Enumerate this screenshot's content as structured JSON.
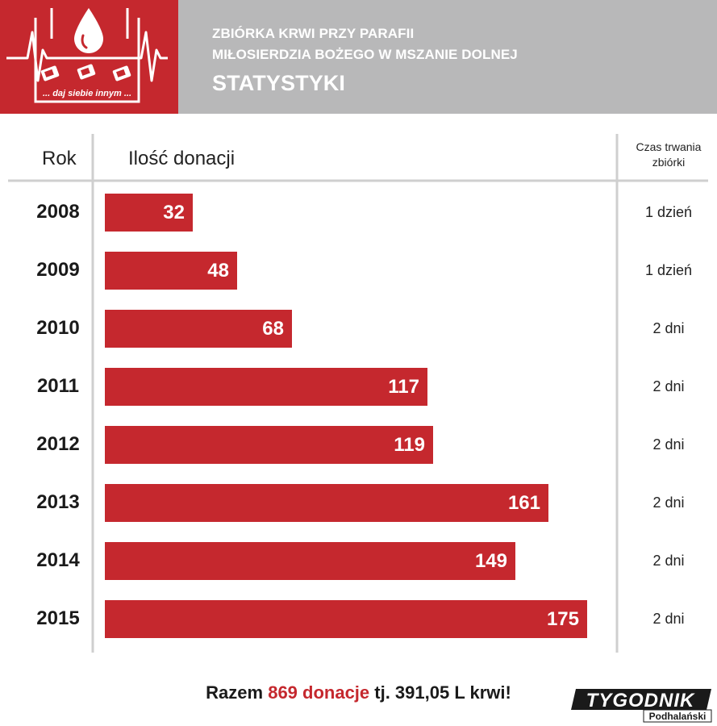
{
  "header": {
    "title_line1": "ZBIÓRKA KRWI PRZY PARAFII",
    "title_line2": "MIŁOSIERDZIA BOŻEGO W MSZANIE DOLNEJ",
    "title_main": "STATYSTYKI",
    "logo_tagline": "... daj siebie innym ..."
  },
  "columns": {
    "year": "Rok",
    "count": "Ilość donacji",
    "duration": "Czas trwania zbiórki"
  },
  "colors": {
    "accent": "#c5282e",
    "header_gray": "#b8b8b9",
    "divider": "#cfcfcf"
  },
  "chart_data": {
    "type": "bar",
    "orientation": "horizontal",
    "categories": [
      "2008",
      "2009",
      "2010",
      "2011",
      "2012",
      "2013",
      "2014",
      "2015"
    ],
    "values": [
      32,
      48,
      68,
      117,
      119,
      161,
      149,
      175
    ],
    "durations": [
      "1 dzień",
      "1 dzień",
      "2 dni",
      "2 dni",
      "2 dni",
      "2 dni",
      "2 dni",
      "2 dni"
    ],
    "xlim": [
      0,
      180
    ],
    "title": "STATYSTYKI",
    "xlabel": "Ilość donacji",
    "ylabel": "Rok",
    "grid": false,
    "legend": "none"
  },
  "footer": {
    "prefix": "Razem ",
    "total": "869 donacje",
    "suffix": " tj. 391,05 L krwi!",
    "brand_main": "TYGODNIK",
    "brand_sub": "Podhalański"
  }
}
